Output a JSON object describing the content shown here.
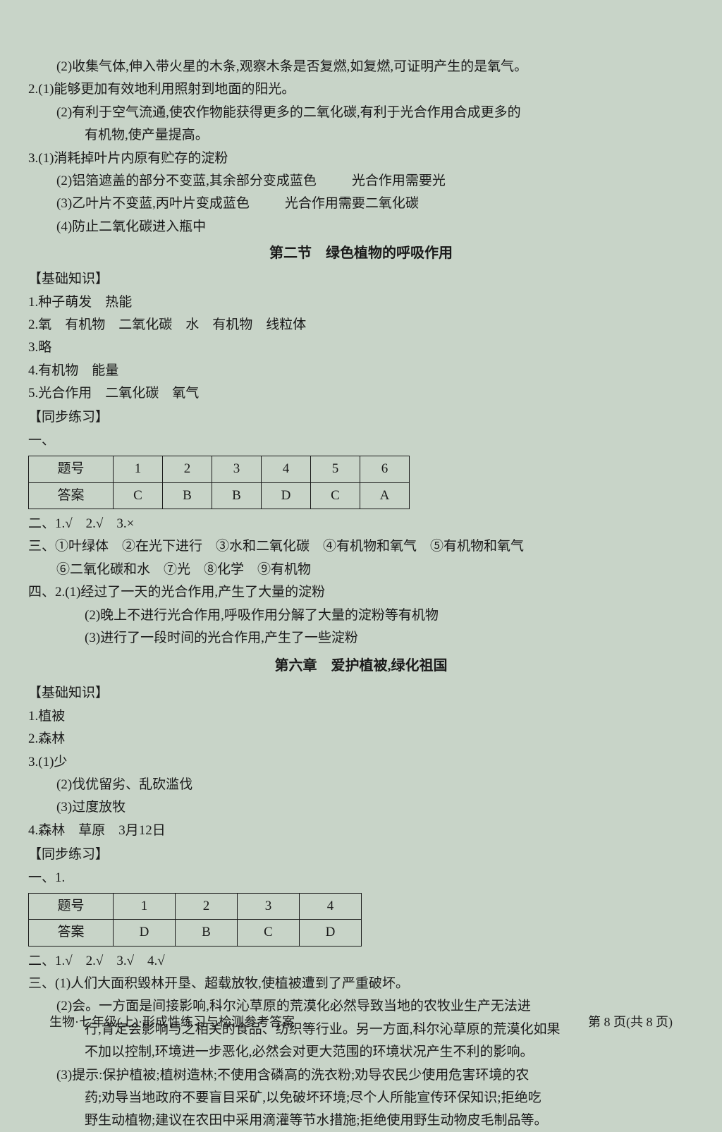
{
  "top": {
    "l1": "(2)收集气体,伸入带火星的木条,观察木条是否复燃,如复燃,可证明产生的是氧气。",
    "l2": "2.(1)能够更加有效地利用照射到地面的阳光。",
    "l3": "(2)有利于空气流通,使农作物能获得更多的二氧化碳,有利于光合作用合成更多的",
    "l3b": "有机物,使产量提高。",
    "l4": "3.(1)消耗掉叶片内原有贮存的淀粉",
    "l5a": "(2)铝箔遮盖的部分不变蓝,其余部分变成蓝色",
    "l5b": "光合作用需要光",
    "l6a": "(3)乙叶片不变蓝,丙叶片变成蓝色",
    "l6b": "光合作用需要二氧化碳",
    "l7": "(4)防止二氧化碳进入瓶中"
  },
  "sec2": {
    "title": "第二节　绿色植物的呼吸作用",
    "header1": "【基础知识】",
    "b1": "1.种子萌发　热能",
    "b2": "2.氧　有机物　二氧化碳　水　有机物　线粒体",
    "b3": "3.略",
    "b4": "4.有机物　能量",
    "b5": "5.光合作用　二氧化碳　氧气",
    "header2": "【同步练习】",
    "yi": "一、"
  },
  "table1": {
    "h": "题号",
    "c1": "1",
    "c2": "2",
    "c3": "3",
    "c4": "4",
    "c5": "5",
    "c6": "6",
    "a": "答案",
    "a1": "C",
    "a2": "B",
    "a3": "B",
    "a4": "D",
    "a5": "C",
    "a6": "A"
  },
  "sec2b": {
    "er": "二、1.√　2.√　3.×",
    "san1": "三、①叶绿体　②在光下进行　③水和二氧化碳　④有机物和氧气　⑤有机物和氧气",
    "san2": "⑥二氧化碳和水　⑦光　⑧化学　⑨有机物",
    "si1": "四、2.(1)经过了一天的光合作用,产生了大量的淀粉",
    "si2": "(2)晚上不进行光合作用,呼吸作用分解了大量的淀粉等有机物",
    "si3": "(3)进行了一段时间的光合作用,产生了一些淀粉"
  },
  "ch6": {
    "title": "第六章　爱护植被,绿化祖国",
    "header1": "【基础知识】",
    "b1": "1.植被",
    "b2": "2.森林",
    "b3": "3.(1)少",
    "b3b": "(2)伐优留劣、乱砍滥伐",
    "b3c": "(3)过度放牧",
    "b4": "4.森林　草原　3月12日",
    "header2": "【同步练习】",
    "yi": "一、1."
  },
  "table2": {
    "h": "题号",
    "c1": "1",
    "c2": "2",
    "c3": "3",
    "c4": "4",
    "a": "答案",
    "a1": "D",
    "a2": "B",
    "a3": "C",
    "a4": "D"
  },
  "ch6b": {
    "er": "二、1.√　2.√　3.√　4.√",
    "san1": "三、(1)人们大面积毁林开垦、超载放牧,使植被遭到了严重破坏。",
    "san2": "(2)会。一方面是间接影响,科尔沁草原的荒漠化必然导致当地的农牧业生产无法进",
    "san2b": "行,肯定会影响与之相关的食品、纺织等行业。另一方面,科尔沁草原的荒漠化如果",
    "san2c": "不加以控制,环境进一步恶化,必然会对更大范围的环境状况产生不利的影响。",
    "san3": "(3)提示:保护植被;植树造林;不使用含磷高的洗衣粉;劝导农民少使用危害环境的农",
    "san3b": "药;劝导当地政府不要盲目采矿,以免破坏环境;尽个人所能宣传环保知识;拒绝吃",
    "san3c": "野生动植物;建议在农田中采用滴灌等节水措施;拒绝使用野生动物皮毛制品等。"
  },
  "footer": {
    "left": "生物·七年级(上)·形成性练习与检测参考答案",
    "right": "第 8 页(共 8 页)"
  }
}
